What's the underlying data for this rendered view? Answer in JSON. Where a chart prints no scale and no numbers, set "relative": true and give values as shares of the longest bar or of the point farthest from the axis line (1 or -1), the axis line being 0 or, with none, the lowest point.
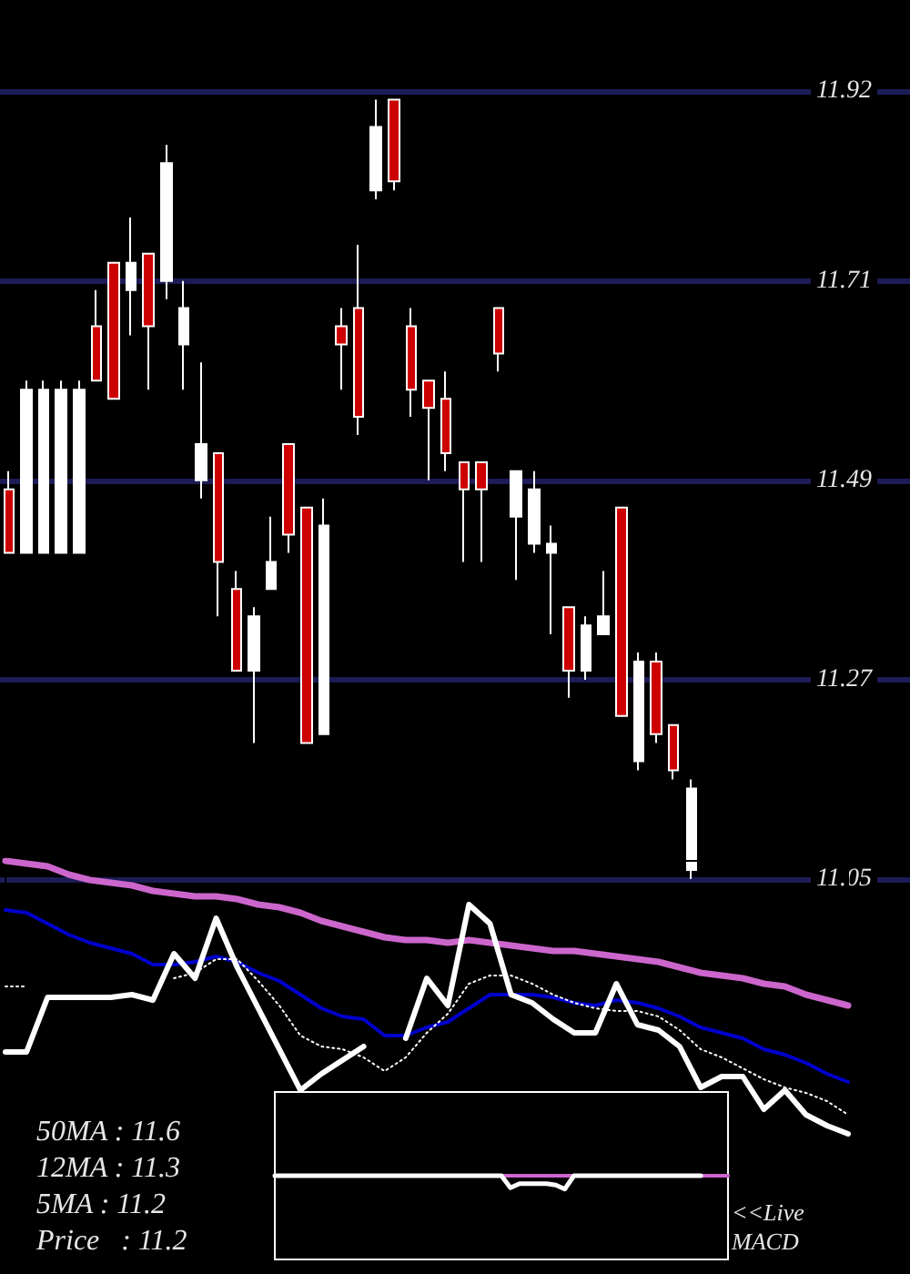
{
  "chart_data": [
    {
      "type": "candlestick",
      "categories": [
        null,
        null,
        null,
        null,
        null,
        null,
        null,
        null,
        null,
        null,
        null,
        null,
        null,
        null,
        null,
        null,
        null,
        null,
        null,
        null,
        null,
        null,
        null,
        null,
        null,
        null,
        null,
        null,
        null,
        null,
        null,
        null,
        null,
        null,
        null,
        null,
        null,
        null,
        null,
        null,
        null,
        null,
        null,
        null,
        null,
        null,
        null,
        null,
        null,
        null,
        null,
        null
      ],
      "ohlc": [
        [
          11.48,
          11.5,
          11.41,
          11.41
        ],
        [
          11.41,
          11.6,
          11.41,
          11.59
        ],
        [
          11.41,
          11.6,
          11.41,
          11.59
        ],
        [
          11.41,
          11.6,
          11.41,
          11.59
        ],
        [
          11.41,
          11.6,
          11.41,
          11.59
        ],
        [
          11.66,
          11.7,
          11.6,
          11.6
        ],
        [
          11.73,
          11.73,
          11.58,
          11.58
        ],
        [
          11.7,
          11.78,
          11.65,
          11.73
        ],
        [
          11.74,
          11.74,
          11.59,
          11.66
        ],
        [
          11.71,
          11.86,
          11.69,
          11.84
        ],
        [
          11.64,
          11.71,
          11.59,
          11.68
        ],
        [
          11.49,
          11.62,
          11.47,
          11.53
        ],
        [
          11.52,
          11.52,
          11.34,
          11.4
        ],
        [
          11.37,
          11.39,
          11.28,
          11.28
        ],
        [
          11.28,
          11.35,
          11.2,
          11.34
        ],
        [
          11.37,
          11.45,
          11.37,
          11.4
        ],
        [
          11.53,
          11.53,
          11.41,
          11.43
        ],
        [
          11.46,
          11.46,
          11.2,
          11.2
        ],
        [
          11.21,
          11.47,
          11.21,
          11.44
        ],
        [
          11.66,
          11.68,
          11.59,
          11.64
        ],
        [
          11.68,
          11.75,
          11.54,
          11.56
        ],
        [
          11.81,
          11.91,
          11.8,
          11.88
        ],
        [
          11.91,
          11.91,
          11.81,
          11.82
        ],
        [
          11.66,
          11.68,
          11.56,
          11.59
        ],
        [
          11.6,
          11.6,
          11.49,
          11.57
        ],
        [
          11.58,
          11.61,
          11.5,
          11.52
        ],
        [
          11.51,
          11.51,
          11.4,
          11.48
        ],
        [
          11.51,
          11.51,
          11.4,
          11.48
        ],
        [
          11.68,
          11.68,
          11.61,
          11.63
        ],
        [
          11.45,
          11.5,
          11.38,
          11.5
        ],
        [
          11.42,
          11.5,
          11.41,
          11.48
        ],
        [
          11.41,
          11.44,
          11.32,
          11.42
        ],
        [
          11.35,
          11.35,
          11.25,
          11.28
        ],
        [
          11.28,
          11.34,
          11.27,
          11.33
        ],
        [
          11.32,
          11.39,
          11.32,
          11.34
        ],
        [
          11.46,
          11.46,
          11.23,
          11.23
        ],
        [
          11.18,
          11.3,
          11.17,
          11.29
        ],
        [
          11.29,
          11.3,
          11.2,
          11.21
        ],
        [
          11.22,
          11.22,
          11.16,
          11.17
        ],
        [
          11.06,
          11.16,
          11.05,
          11.15
        ],
        null,
        null,
        null,
        null,
        null,
        null,
        null,
        null,
        null,
        null,
        null,
        null
      ],
      "colors": [
        "#cc0000",
        "#ffffff",
        "#ffffff",
        "#ffffff",
        "#ffffff",
        "#cc0000",
        "#cc0000",
        "#ffffff",
        "#cc0000",
        "#ffffff",
        "#ffffff",
        "#ffffff",
        "#cc0000",
        "#cc0000",
        "#ffffff",
        "#ffffff",
        "#cc0000",
        "#cc0000",
        "#ffffff",
        "#cc0000",
        "#cc0000",
        "#ffffff",
        "#cc0000",
        "#cc0000",
        "#cc0000",
        "#cc0000",
        "#cc0000",
        "#cc0000",
        "#cc0000",
        "#ffffff",
        "#ffffff",
        "#ffffff",
        "#cc0000",
        "#ffffff",
        "#ffffff",
        "#cc0000",
        "#ffffff",
        "#cc0000",
        "#cc0000",
        "#ffffff",
        null,
        null,
        null,
        null,
        null,
        null,
        null,
        null,
        null,
        null,
        null,
        null
      ],
      "ylim": [
        11.05,
        12.02
      ],
      "yticks": [
        11.05,
        11.27,
        11.49,
        11.71,
        11.92
      ],
      "grid": "y"
    },
    {
      "type": "line",
      "relative": true,
      "categories": [
        null,
        null,
        null,
        null,
        null,
        null,
        null,
        null,
        null,
        null,
        null,
        null,
        null,
        null,
        null,
        null,
        null,
        null,
        null,
        null,
        null,
        null,
        null,
        null,
        null,
        null,
        null,
        null,
        null,
        null,
        null,
        null,
        null,
        null,
        null,
        null,
        null,
        null,
        null,
        null,
        null
      ],
      "series": [
        {
          "color": "#cc66cc",
          "values": [
            1.0,
            0.99,
            0.98,
            0.95,
            0.93,
            0.92,
            0.91,
            0.89,
            0.88,
            0.87,
            0.87,
            0.86,
            0.84,
            0.83,
            0.81,
            0.78,
            0.76,
            0.74,
            0.72,
            0.71,
            0.71,
            0.7,
            0.71,
            0.7,
            0.69,
            0.68,
            0.67,
            0.67,
            0.66,
            0.65,
            0.64,
            0.63,
            0.61,
            0.59,
            0.58,
            0.57,
            0.55,
            0.54,
            0.51,
            0.49,
            0.47
          ]
        },
        {
          "color": "#0000cc",
          "values": [
            0.82,
            0.81,
            0.77,
            0.73,
            0.7,
            0.68,
            0.66,
            0.62,
            0.62,
            0.63,
            0.65,
            0.63,
            0.59,
            0.56,
            0.51,
            0.46,
            0.43,
            0.42,
            0.36,
            0.36,
            0.39,
            0.41,
            0.46,
            0.51,
            0.51,
            0.51,
            0.5,
            0.48,
            0.47,
            0.49,
            0.48,
            0.46,
            0.43,
            0.39,
            0.37,
            0.35,
            0.31,
            0.29,
            0.26,
            0.22,
            0.19
          ]
        },
        {
          "color": "#ffffff",
          "line_style": "dotted",
          "values": [
            0.54,
            0.54,
            null,
            null,
            null,
            null,
            null,
            null,
            0.57,
            0.59,
            0.64,
            0.64,
            0.56,
            0.47,
            0.36,
            0.32,
            0.31,
            0.28,
            0.23,
            0.28,
            0.37,
            0.44,
            0.55,
            0.58,
            0.58,
            0.55,
            0.51,
            0.48,
            0.46,
            0.45,
            0.45,
            0.43,
            0.38,
            0.31,
            0.28,
            0.24,
            0.2,
            0.17,
            0.15,
            0.12,
            0.07
          ]
        },
        {
          "color": "#ffffff",
          "values": [
            0.3,
            0.3,
            0.5,
            0.5,
            0.5,
            0.5,
            0.51,
            0.49,
            0.66,
            0.57,
            0.79,
            0.61,
            0.46,
            0.31,
            0.16,
            0.22,
            0.27,
            0.32,
            null,
            0.35,
            0.57,
            0.47,
            0.84,
            0.77,
            0.51,
            0.48,
            0.42,
            0.37,
            0.37,
            0.55,
            0.4,
            0.38,
            0.32,
            0.17,
            0.21,
            0.21,
            0.09,
            0.16,
            0.07,
            0.03,
            0
          ]
        }
      ],
      "annotations": [
        "50MA : 11.6",
        "12MA : 11.3",
        "5MA : 11.2",
        "Price   : 11.2"
      ]
    },
    {
      "type": "line",
      "relative": true,
      "categories": [
        null,
        null,
        null,
        null,
        null,
        null,
        null,
        null,
        null,
        null,
        null,
        null,
        null,
        null,
        null,
        null,
        null,
        null,
        null,
        null,
        null,
        null,
        null,
        null,
        null,
        null,
        null,
        null,
        null,
        null,
        null,
        null,
        null,
        null,
        null,
        null,
        null,
        null,
        null,
        null,
        null,
        null,
        null,
        null,
        null,
        null,
        null,
        null,
        null,
        null,
        null
      ],
      "series": [
        {
          "color": "#cc66cc",
          "values": [
            null,
            null,
            null,
            null,
            null,
            null,
            null,
            null,
            null,
            null,
            null,
            null,
            null,
            null,
            null,
            null,
            null,
            null,
            null,
            null,
            null,
            null,
            null,
            null,
            null,
            1,
            1,
            1,
            1,
            1,
            1,
            1,
            1,
            1,
            null,
            null,
            null,
            null,
            null,
            null,
            null,
            null,
            null,
            null,
            null,
            null,
            null,
            1,
            1,
            1,
            1
          ]
        },
        {
          "color": "#ffffff",
          "values": [
            1,
            1,
            1,
            1,
            1,
            1,
            1,
            1,
            1,
            1,
            1,
            1,
            1,
            1,
            1,
            1,
            1,
            1,
            1,
            1,
            1,
            1,
            1,
            1,
            1,
            1,
            0.1,
            0.4,
            0.4,
            0.4,
            0.4,
            0.3,
            0,
            1,
            1,
            1,
            1,
            1,
            1,
            1,
            1,
            1,
            1,
            1,
            1,
            1,
            1,
            1,
            null,
            null,
            null
          ]
        }
      ],
      "annotations": [
        "<<Live MACD"
      ]
    }
  ]
}
